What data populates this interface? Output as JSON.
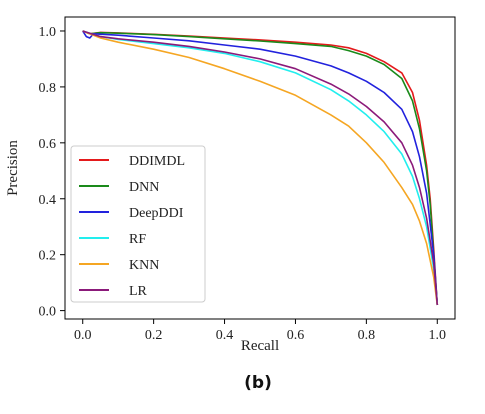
{
  "chart_data": {
    "type": "line",
    "caption": "(b)",
    "xlabel": "Recall",
    "ylabel": "Precision",
    "xlim": [
      -0.05,
      1.05
    ],
    "ylim": [
      -0.03,
      1.05
    ],
    "xticks": [
      "0.0",
      "0.2",
      "0.4",
      "0.6",
      "0.8",
      "1.0"
    ],
    "yticks": [
      "0.0",
      "0.2",
      "0.4",
      "0.6",
      "0.8",
      "1.0"
    ],
    "legend_position": "lower-left",
    "grid": false,
    "series": [
      {
        "name": "DDIMDL",
        "color": "#e41a1c",
        "points": [
          [
            0,
            1.0
          ],
          [
            0.02,
            0.99
          ],
          [
            0.05,
            0.995
          ],
          [
            0.1,
            0.993
          ],
          [
            0.2,
            0.988
          ],
          [
            0.3,
            0.982
          ],
          [
            0.4,
            0.975
          ],
          [
            0.5,
            0.968
          ],
          [
            0.6,
            0.96
          ],
          [
            0.7,
            0.95
          ],
          [
            0.75,
            0.94
          ],
          [
            0.8,
            0.92
          ],
          [
            0.85,
            0.89
          ],
          [
            0.9,
            0.85
          ],
          [
            0.93,
            0.78
          ],
          [
            0.95,
            0.68
          ],
          [
            0.97,
            0.52
          ],
          [
            0.98,
            0.4
          ],
          [
            0.99,
            0.22
          ],
          [
            1.0,
            0.02
          ]
        ]
      },
      {
        "name": "DNN",
        "color": "#1a8a1a",
        "points": [
          [
            0,
            1.0
          ],
          [
            0.02,
            0.99
          ],
          [
            0.05,
            0.994
          ],
          [
            0.1,
            0.992
          ],
          [
            0.2,
            0.987
          ],
          [
            0.3,
            0.98
          ],
          [
            0.4,
            0.972
          ],
          [
            0.5,
            0.964
          ],
          [
            0.6,
            0.955
          ],
          [
            0.7,
            0.945
          ],
          [
            0.75,
            0.93
          ],
          [
            0.8,
            0.91
          ],
          [
            0.85,
            0.88
          ],
          [
            0.9,
            0.83
          ],
          [
            0.93,
            0.75
          ],
          [
            0.95,
            0.65
          ],
          [
            0.97,
            0.5
          ],
          [
            0.98,
            0.38
          ],
          [
            0.99,
            0.2
          ],
          [
            1.0,
            0.02
          ]
        ]
      },
      {
        "name": "DeepDDI",
        "color": "#2222dd",
        "points": [
          [
            0,
            1.0
          ],
          [
            0.01,
            0.98
          ],
          [
            0.02,
            0.975
          ],
          [
            0.03,
            0.99
          ],
          [
            0.1,
            0.985
          ],
          [
            0.2,
            0.975
          ],
          [
            0.3,
            0.965
          ],
          [
            0.4,
            0.95
          ],
          [
            0.5,
            0.935
          ],
          [
            0.6,
            0.91
          ],
          [
            0.7,
            0.875
          ],
          [
            0.75,
            0.85
          ],
          [
            0.8,
            0.82
          ],
          [
            0.85,
            0.78
          ],
          [
            0.9,
            0.72
          ],
          [
            0.93,
            0.64
          ],
          [
            0.95,
            0.55
          ],
          [
            0.97,
            0.42
          ],
          [
            0.99,
            0.2
          ],
          [
            1.0,
            0.02
          ]
        ]
      },
      {
        "name": "RF",
        "color": "#22eeee",
        "points": [
          [
            0,
            1.0
          ],
          [
            0.05,
            0.98
          ],
          [
            0.1,
            0.97
          ],
          [
            0.2,
            0.955
          ],
          [
            0.3,
            0.94
          ],
          [
            0.4,
            0.92
          ],
          [
            0.5,
            0.89
          ],
          [
            0.6,
            0.85
          ],
          [
            0.7,
            0.79
          ],
          [
            0.75,
            0.75
          ],
          [
            0.8,
            0.7
          ],
          [
            0.85,
            0.64
          ],
          [
            0.9,
            0.56
          ],
          [
            0.93,
            0.48
          ],
          [
            0.95,
            0.4
          ],
          [
            0.97,
            0.3
          ],
          [
            0.99,
            0.15
          ],
          [
            1.0,
            0.02
          ]
        ]
      },
      {
        "name": "KNN",
        "color": "#f5a623",
        "points": [
          [
            0,
            1.0
          ],
          [
            0.05,
            0.975
          ],
          [
            0.1,
            0.96
          ],
          [
            0.2,
            0.935
          ],
          [
            0.3,
            0.905
          ],
          [
            0.4,
            0.865
          ],
          [
            0.5,
            0.82
          ],
          [
            0.6,
            0.77
          ],
          [
            0.7,
            0.7
          ],
          [
            0.75,
            0.66
          ],
          [
            0.8,
            0.6
          ],
          [
            0.85,
            0.53
          ],
          [
            0.9,
            0.44
          ],
          [
            0.93,
            0.38
          ],
          [
            0.95,
            0.32
          ],
          [
            0.97,
            0.24
          ],
          [
            0.99,
            0.12
          ],
          [
            1.0,
            0.02
          ]
        ]
      },
      {
        "name": "LR",
        "color": "#8b1a7a",
        "points": [
          [
            0,
            1.0
          ],
          [
            0.05,
            0.98
          ],
          [
            0.1,
            0.972
          ],
          [
            0.2,
            0.96
          ],
          [
            0.3,
            0.945
          ],
          [
            0.4,
            0.925
          ],
          [
            0.5,
            0.9
          ],
          [
            0.6,
            0.865
          ],
          [
            0.7,
            0.81
          ],
          [
            0.75,
            0.775
          ],
          [
            0.8,
            0.73
          ],
          [
            0.85,
            0.675
          ],
          [
            0.9,
            0.6
          ],
          [
            0.93,
            0.52
          ],
          [
            0.95,
            0.44
          ],
          [
            0.97,
            0.33
          ],
          [
            0.99,
            0.17
          ],
          [
            1.0,
            0.02
          ]
        ]
      }
    ]
  }
}
